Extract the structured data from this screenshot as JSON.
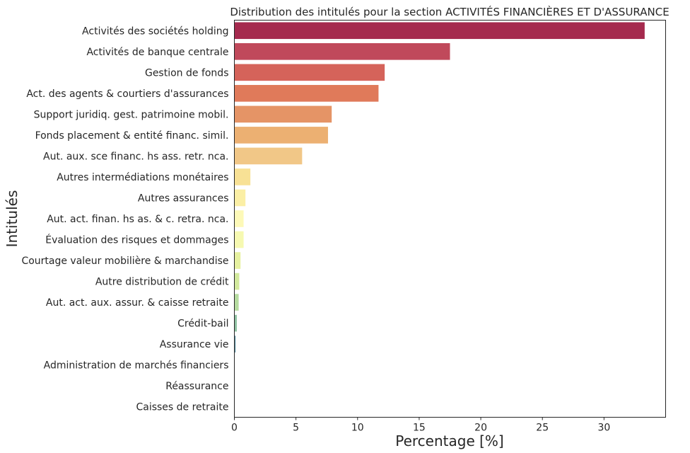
{
  "chart_data": {
    "type": "bar",
    "orientation": "horizontal",
    "title": "Distribution des intitulés pour la section ACTIVITÉS FINANCIÈRES ET D'ASSURANCE",
    "xlabel": "Percentage [%]",
    "ylabel": "Intitulés",
    "xlim": [
      0,
      35
    ],
    "xticks": [
      0,
      5,
      10,
      15,
      20,
      25,
      30
    ],
    "grid": false,
    "categories": [
      "Activités des sociétés holding",
      "Activités de banque centrale",
      "Gestion de fonds",
      "Act. des agents & courtiers d'assurances",
      "Support juridiq. gest. patrimoine mobil.",
      "Fonds placement & entité financ. simil.",
      "Aut. aux. sce financ. hs ass. retr. nca.",
      "Autres intermédiations monétaires",
      "Autres assurances",
      "Aut. act. finan. hs as. & c. retra. nca.",
      "Évaluation des risques et dommages",
      "Courtage valeur mobilière & marchandise",
      "Autre distribution de crédit",
      "Aut. act. aux. assur. & caisse retraite",
      "Crédit-bail",
      "Assurance vie",
      "Administration de marchés financiers",
      "Réassurance",
      "Caisses de retraite"
    ],
    "values": [
      33.3,
      17.5,
      12.2,
      11.7,
      7.9,
      7.6,
      5.5,
      1.3,
      0.9,
      0.75,
      0.75,
      0.5,
      0.4,
      0.35,
      0.2,
      0.1,
      0.02,
      0.01,
      0.01
    ],
    "colors": [
      "#a52a4e",
      "#c0495b",
      "#d5635a",
      "#e07a5a",
      "#e59466",
      "#ecb072",
      "#f1c787",
      "#f8e195",
      "#fbefa5",
      "#fdf9b8",
      "#f6f9b1",
      "#e6f1a0",
      "#d2e99d",
      "#b6dca0",
      "#8fc1a2",
      "#5d8fa0",
      "#4a6fa0",
      "#5151a0",
      "#5b4a96"
    ]
  }
}
